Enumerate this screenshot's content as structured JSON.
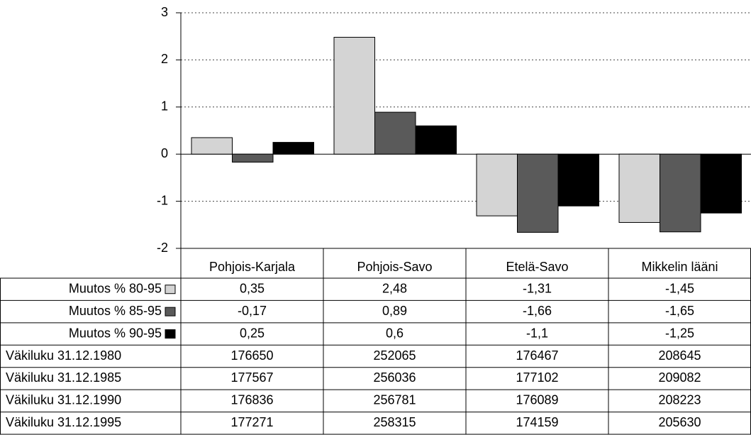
{
  "chart_data": {
    "type": "bar",
    "categories": [
      "Pohjois-Karjala",
      "Pohjois-Savo",
      "Etelä-Savo",
      "Mikkelin lääni"
    ],
    "series": [
      {
        "name": "Muutos % 80-95",
        "color": "#d4d4d4",
        "values": [
          0.35,
          2.48,
          -1.31,
          -1.45
        ],
        "value_labels": [
          "0,35",
          "2,48",
          "-1,31",
          "-1,45"
        ]
      },
      {
        "name": "Muutos % 85-95",
        "color": "#5a5a5a",
        "values": [
          -0.17,
          0.89,
          -1.66,
          -1.65
        ],
        "value_labels": [
          "-0,17",
          "0,89",
          "-1,66",
          "-1,65"
        ]
      },
      {
        "name": "Muutos % 90-95",
        "color": "#000000",
        "values": [
          0.25,
          0.6,
          -1.1,
          -1.25
        ],
        "value_labels": [
          "0,25",
          "0,6",
          "-1,1",
          "-1,25"
        ]
      }
    ],
    "table_rows": [
      {
        "name": "Väkiluku 31.12.1980",
        "values": [
          176650,
          252065,
          176467,
          208645
        ]
      },
      {
        "name": "Väkiluku 31.12.1985",
        "values": [
          177567,
          256036,
          177102,
          209082
        ]
      },
      {
        "name": "Väkiluku 31.12.1990",
        "values": [
          176836,
          256781,
          176089,
          208223
        ]
      },
      {
        "name": "Väkiluku 31.12.1995",
        "values": [
          177271,
          258315,
          174159,
          205630
        ]
      }
    ],
    "ylim": [
      -2,
      3
    ],
    "yticks": [
      -2,
      -1,
      0,
      1,
      2,
      3
    ],
    "grid": true
  }
}
